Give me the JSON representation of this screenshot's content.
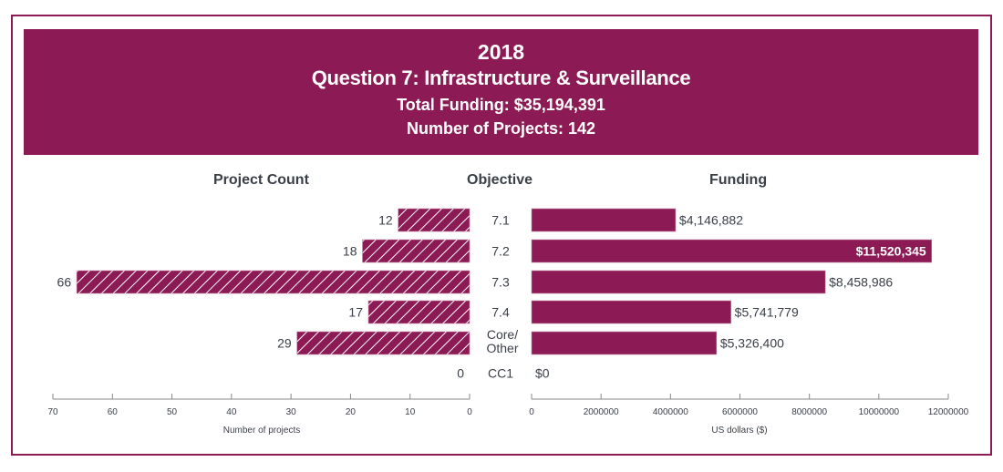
{
  "header": {
    "year": "2018",
    "title": "Question 7: Infrastructure & Surveillance",
    "total_funding": "Total Funding: $35,194,391",
    "num_projects": "Number of Projects: 142"
  },
  "columns": {
    "left": "Project Count",
    "center": "Objective",
    "right": "Funding"
  },
  "colors": {
    "brand": "#8c1a55",
    "text": "#3a3f48",
    "axis": "#888888"
  },
  "chart_data": [
    {
      "type": "bar",
      "orientation": "horizontal",
      "direction": "right-to-left",
      "title": "Project Count",
      "categories": [
        "7.1",
        "7.2",
        "7.3",
        "7.4",
        "Core/Other",
        "CC1"
      ],
      "values": [
        12,
        18,
        66,
        17,
        29,
        0
      ],
      "data_labels": [
        "12",
        "18",
        "66",
        "17",
        "29",
        "0"
      ],
      "xlabel": "Number of projects",
      "xlim": [
        0,
        70
      ],
      "ticks": [
        70,
        60,
        50,
        40,
        30,
        20,
        10,
        0
      ],
      "fill": "hatched",
      "grid": false
    },
    {
      "type": "bar",
      "orientation": "horizontal",
      "direction": "left-to-right",
      "title": "Funding",
      "categories": [
        "7.1",
        "7.2",
        "7.3",
        "7.4",
        "Core/Other",
        "CC1"
      ],
      "values": [
        4146882,
        11520345,
        8458986,
        5741779,
        5326400,
        0
      ],
      "data_labels": [
        "$4,146,882",
        "$11,520,345",
        "$8,458,986",
        "$5,741,779",
        "$5,326,400",
        "$0"
      ],
      "inside_label_index": 1,
      "xlabel": "US dollars ($)",
      "xlim": [
        0,
        12000000
      ],
      "ticks": [
        0,
        2000000,
        4000000,
        6000000,
        8000000,
        10000000,
        12000000
      ],
      "fill": "solid",
      "grid": false
    }
  ],
  "objective_labels": [
    [
      "7.1"
    ],
    [
      "7.2"
    ],
    [
      "7.3"
    ],
    [
      "7.4"
    ],
    [
      "Core/",
      "Other"
    ],
    [
      "CC1"
    ]
  ]
}
